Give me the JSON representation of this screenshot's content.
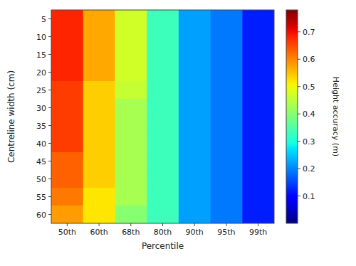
{
  "chart_data": {
    "type": "heatmap",
    "xlabel": "Percentile",
    "ylabel": "Centreline width (cm)",
    "colorbar_label": "Height accuracy (m)",
    "categories": [
      "50th",
      "60th",
      "68th",
      "80th",
      "90th",
      "95th",
      "99th"
    ],
    "rows": [
      5,
      10,
      15,
      20,
      25,
      30,
      35,
      40,
      45,
      50,
      55,
      60
    ],
    "values": [
      [
        0.68,
        0.57,
        0.47,
        0.33,
        0.22,
        0.19,
        0.12
      ],
      [
        0.68,
        0.57,
        0.47,
        0.33,
        0.22,
        0.19,
        0.12
      ],
      [
        0.68,
        0.57,
        0.47,
        0.33,
        0.22,
        0.19,
        0.12
      ],
      [
        0.68,
        0.57,
        0.47,
        0.33,
        0.22,
        0.19,
        0.12
      ],
      [
        0.66,
        0.54,
        0.46,
        0.33,
        0.22,
        0.19,
        0.12
      ],
      [
        0.66,
        0.54,
        0.43,
        0.33,
        0.22,
        0.19,
        0.12
      ],
      [
        0.66,
        0.54,
        0.43,
        0.33,
        0.22,
        0.19,
        0.12
      ],
      [
        0.66,
        0.54,
        0.43,
        0.33,
        0.22,
        0.19,
        0.12
      ],
      [
        0.63,
        0.54,
        0.43,
        0.33,
        0.22,
        0.19,
        0.12
      ],
      [
        0.63,
        0.54,
        0.43,
        0.33,
        0.22,
        0.19,
        0.12
      ],
      [
        0.61,
        0.52,
        0.43,
        0.33,
        0.22,
        0.19,
        0.12
      ],
      [
        0.58,
        0.52,
        0.4,
        0.33,
        0.22,
        0.19,
        0.12
      ]
    ],
    "colorbar_range": [
      0.0,
      0.78
    ],
    "colorbar_ticks": [
      0.1,
      0.2,
      0.3,
      0.4,
      0.5,
      0.6,
      0.7
    ]
  }
}
